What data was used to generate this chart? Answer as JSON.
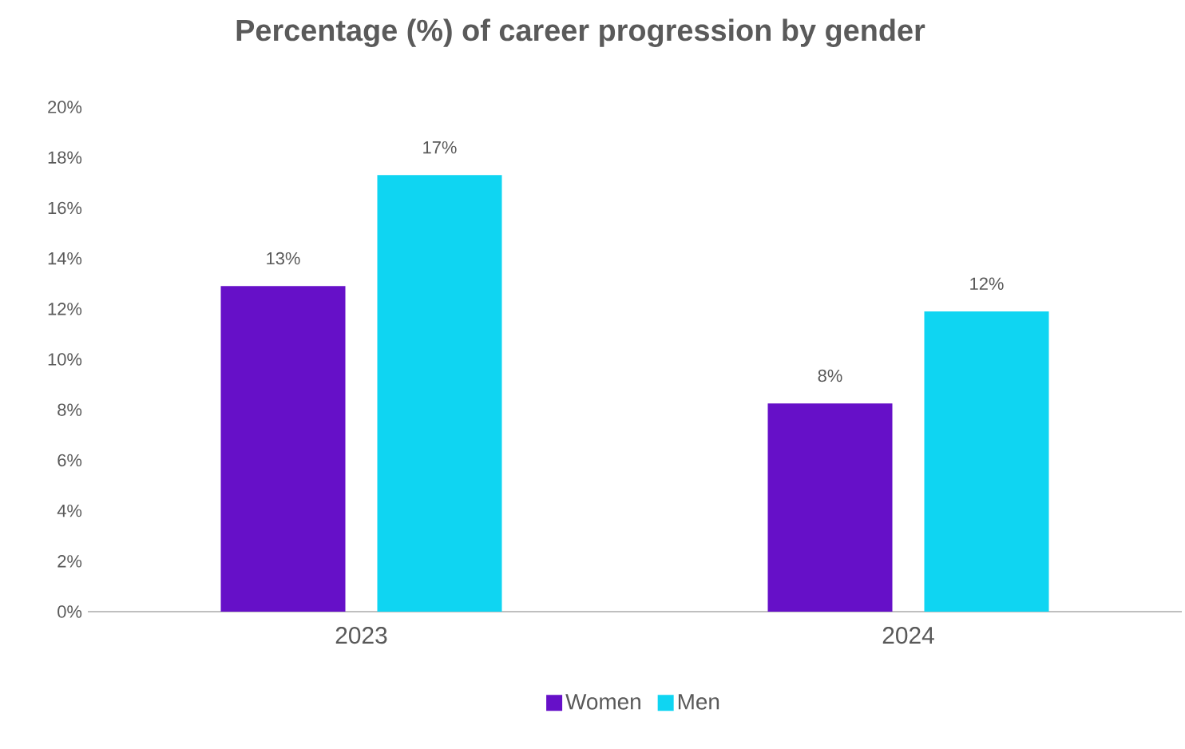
{
  "chart_data": {
    "type": "bar",
    "title": "Percentage (%) of career progression by gender",
    "categories": [
      "2023",
      "2024"
    ],
    "series": [
      {
        "name": "Women",
        "color": "#6610c8",
        "values": [
          12.9,
          8.25
        ],
        "value_labels": [
          "13%",
          "8%"
        ]
      },
      {
        "name": "Men",
        "color": "#0fd5f2",
        "values": [
          17.3,
          11.9
        ],
        "value_labels": [
          "17%",
          "12%"
        ]
      }
    ],
    "ylim": [
      0,
      20
    ],
    "yticks": [
      {
        "value": 0,
        "label": "0%"
      },
      {
        "value": 2,
        "label": "2%"
      },
      {
        "value": 4,
        "label": "4%"
      },
      {
        "value": 6,
        "label": "6%"
      },
      {
        "value": 8,
        "label": "8%"
      },
      {
        "value": 10,
        "label": "10%"
      },
      {
        "value": 12,
        "label": "12%"
      },
      {
        "value": 14,
        "label": "14%"
      },
      {
        "value": 16,
        "label": "16%"
      },
      {
        "value": 18,
        "label": "18%"
      },
      {
        "value": 20,
        "label": "20%"
      }
    ],
    "grid": false,
    "legend": "bottom"
  }
}
